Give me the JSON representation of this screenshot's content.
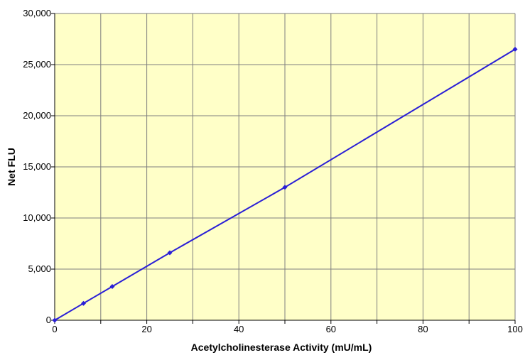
{
  "colors": {
    "plot_background": "#ffffc8",
    "grid": "#7f7f7f",
    "series": "#2a1fd6"
  },
  "chart_data": {
    "type": "line",
    "title": "",
    "xlabel": "Acetylcholinesterase Activity (mU/mL)",
    "ylabel": "Net FLU",
    "xlim": [
      0,
      100
    ],
    "ylim": [
      0,
      30000
    ],
    "grid": true,
    "legend": "none",
    "x_ticks": [
      0,
      20,
      40,
      60,
      80,
      100
    ],
    "x_tick_labels": [
      "0",
      "20",
      "40",
      "60",
      "80",
      "100"
    ],
    "y_ticks": [
      0,
      5000,
      10000,
      15000,
      20000,
      25000,
      30000
    ],
    "y_tick_labels": [
      "0",
      "5,000",
      "10,000",
      "15,000",
      "20,000",
      "25,000",
      "30,000"
    ],
    "series": [
      {
        "x": [
          0,
          6.25,
          12.5,
          25,
          50,
          100
        ],
        "y": [
          0,
          1650,
          3300,
          6600,
          13000,
          26500
        ],
        "marker": "diamond"
      }
    ]
  }
}
